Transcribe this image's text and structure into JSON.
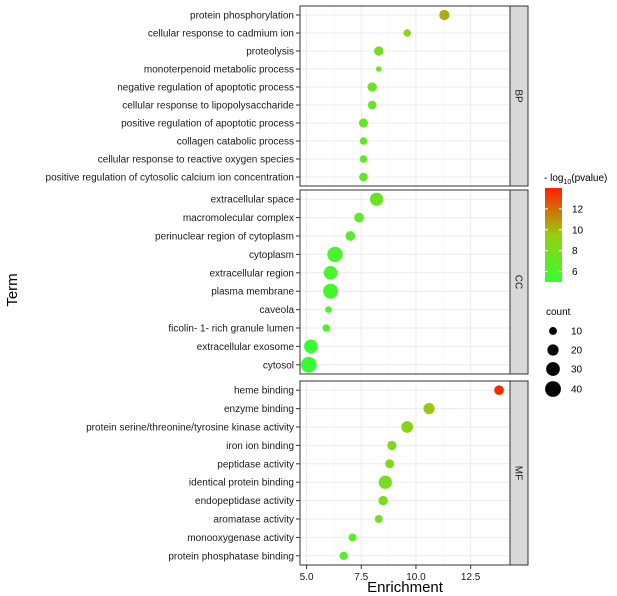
{
  "chart_data": {
    "type": "scatter",
    "subtype": "faceted-bubble",
    "xlabel": "Enrichment",
    "ylabel": "Term",
    "xlim": [
      4.7,
      14.3
    ],
    "xticks": [
      5.0,
      7.5,
      10.0,
      12.5
    ],
    "xtick_labels": [
      "5.0",
      "7.5",
      "10.0",
      "12.5"
    ],
    "grid": true,
    "facets": [
      {
        "name": "BP",
        "points": [
          {
            "term": "protein phosphorylation",
            "enrichment": 11.3,
            "neglog10p": 10.3,
            "count": 17
          },
          {
            "term": "cellular response to cadmium ion",
            "enrichment": 9.6,
            "neglog10p": 9.0,
            "count": 9
          },
          {
            "term": "proteolysis",
            "enrichment": 8.3,
            "neglog10p": 7.7,
            "count": 14
          },
          {
            "term": "monoterpenoid metabolic process",
            "enrichment": 8.3,
            "neglog10p": 7.3,
            "count": 5
          },
          {
            "term": "negative regulation of apoptotic process",
            "enrichment": 8.0,
            "neglog10p": 7.5,
            "count": 14
          },
          {
            "term": "cellular response to lipopolysaccharide",
            "enrichment": 8.0,
            "neglog10p": 7.3,
            "count": 12
          },
          {
            "term": "positive regulation of apoptotic process",
            "enrichment": 7.6,
            "neglog10p": 7.0,
            "count": 13
          },
          {
            "term": "collagen catabolic process",
            "enrichment": 7.6,
            "neglog10p": 6.9,
            "count": 9
          },
          {
            "term": "cellular response to reactive oxygen species",
            "enrichment": 7.6,
            "neglog10p": 6.8,
            "count": 9
          },
          {
            "term": "positive regulation of cytosolic calcium ion concentration",
            "enrichment": 7.6,
            "neglog10p": 7.0,
            "count": 12
          }
        ]
      },
      {
        "name": "CC",
        "points": [
          {
            "term": "extracellular space",
            "enrichment": 8.2,
            "neglog10p": 7.5,
            "count": 28
          },
          {
            "term": "macromolecular complex",
            "enrichment": 7.4,
            "neglog10p": 6.8,
            "count": 15
          },
          {
            "term": "perinuclear region of cytoplasm",
            "enrichment": 7.0,
            "neglog10p": 6.6,
            "count": 15
          },
          {
            "term": "cytoplasm",
            "enrichment": 6.3,
            "neglog10p": 6.1,
            "count": 38
          },
          {
            "term": "extracellular region",
            "enrichment": 6.1,
            "neglog10p": 6.0,
            "count": 30
          },
          {
            "term": "plasma membrane",
            "enrichment": 6.1,
            "neglog10p": 5.9,
            "count": 36
          },
          {
            "term": "caveola",
            "enrichment": 6.0,
            "neglog10p": 5.8,
            "count": 7
          },
          {
            "term": "ficolin- 1- rich granule lumen",
            "enrichment": 5.9,
            "neglog10p": 5.8,
            "count": 9
          },
          {
            "term": "extracellular exosome",
            "enrichment": 5.2,
            "neglog10p": 5.2,
            "count": 30
          },
          {
            "term": "cytosol",
            "enrichment": 5.1,
            "neglog10p": 5.1,
            "count": 40
          }
        ]
      },
      {
        "name": "MF",
        "points": [
          {
            "term": "heme binding",
            "enrichment": 13.8,
            "neglog10p": 13.8,
            "count": 15
          },
          {
            "term": "enzyme binding",
            "enrichment": 10.6,
            "neglog10p": 9.6,
            "count": 20
          },
          {
            "term": "protein serine/threonine/tyrosine kinase activity",
            "enrichment": 9.6,
            "neglog10p": 8.9,
            "count": 22
          },
          {
            "term": "iron ion binding",
            "enrichment": 8.9,
            "neglog10p": 8.3,
            "count": 14
          },
          {
            "term": "peptidase activity",
            "enrichment": 8.8,
            "neglog10p": 8.2,
            "count": 13
          },
          {
            "term": "identical protein binding",
            "enrichment": 8.6,
            "neglog10p": 8.0,
            "count": 28
          },
          {
            "term": "endopeptidase activity",
            "enrichment": 8.5,
            "neglog10p": 7.9,
            "count": 14
          },
          {
            "term": "aromatase activity",
            "enrichment": 8.3,
            "neglog10p": 7.7,
            "count": 10
          },
          {
            "term": "monooxygenase activity",
            "enrichment": 7.1,
            "neglog10p": 6.8,
            "count": 10
          },
          {
            "term": "protein phosphatase binding",
            "enrichment": 6.7,
            "neglog10p": 6.5,
            "count": 11
          }
        ]
      }
    ],
    "color_legend": {
      "title": "- log10(pvalue)",
      "title_prefix": "- log",
      "title_subscript": "10",
      "title_suffix": "(pvalue)",
      "range": [
        5,
        14
      ],
      "ticks": [
        6,
        8,
        10,
        12
      ],
      "tick_labels": [
        "6",
        "8",
        "10",
        "12"
      ],
      "low_color": "#33ff33",
      "high_color": "#ff2000"
    },
    "size_legend": {
      "title": "count",
      "values": [
        10,
        20,
        30,
        40
      ],
      "labels": [
        "10",
        "20",
        "30",
        "40"
      ]
    }
  },
  "colors": {
    "strip_fill": "#d9d9d9",
    "grid": "#ebebeb",
    "panel_border": "#333333"
  }
}
